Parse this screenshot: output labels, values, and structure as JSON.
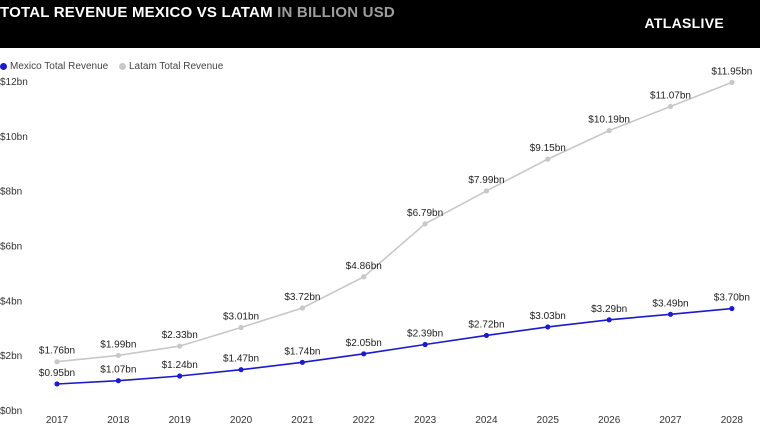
{
  "header": {
    "title_main": "TOTAL REVENUE MEXICO VS LATAM",
    "title_unit": "IN BILLION USD",
    "brand": "ATLASLIVE"
  },
  "colors": {
    "mexico": "#1a1ad0",
    "latam": "#c8c8c8",
    "header_bg": "#000000"
  },
  "chart_data": {
    "type": "line",
    "categories": [
      "2017",
      "2018",
      "2019",
      "2020",
      "2021",
      "2022",
      "2023",
      "2024",
      "2025",
      "2026",
      "2027",
      "2028"
    ],
    "series": [
      {
        "name": "Mexico Total Revenue",
        "values": [
          0.95,
          1.07,
          1.24,
          1.47,
          1.74,
          2.05,
          2.39,
          2.72,
          3.03,
          3.29,
          3.49,
          3.7
        ],
        "labels": [
          "$0.95bn",
          "$1.07bn",
          "$1.24bn",
          "$1.47bn",
          "$1.74bn",
          "$2.05bn",
          "$2.39bn",
          "$2.72bn",
          "$3.03bn",
          "$3.29bn",
          "$3.49bn",
          "$3.70bn"
        ]
      },
      {
        "name": "Latam Total Revenue",
        "values": [
          1.76,
          1.99,
          2.33,
          3.01,
          3.72,
          4.86,
          6.79,
          7.99,
          9.15,
          10.19,
          11.07,
          11.95
        ],
        "labels": [
          "$1.76bn",
          "$1.99bn",
          "$2.33bn",
          "$3.01bn",
          "$3.72bn",
          "$4.86bn",
          "$6.79bn",
          "$7.99bn",
          "$9.15bn",
          "$10.19bn",
          "$11.07bn",
          "$11.95bn"
        ]
      }
    ],
    "yticks": [
      0,
      2,
      4,
      6,
      8,
      10,
      12
    ],
    "ytick_labels": [
      "$0bn",
      "$2bn",
      "$4bn",
      "$6bn",
      "$8bn",
      "$10bn",
      "$12bn"
    ],
    "ylim": [
      0,
      12
    ],
    "grid": false,
    "legend": "top-left"
  }
}
